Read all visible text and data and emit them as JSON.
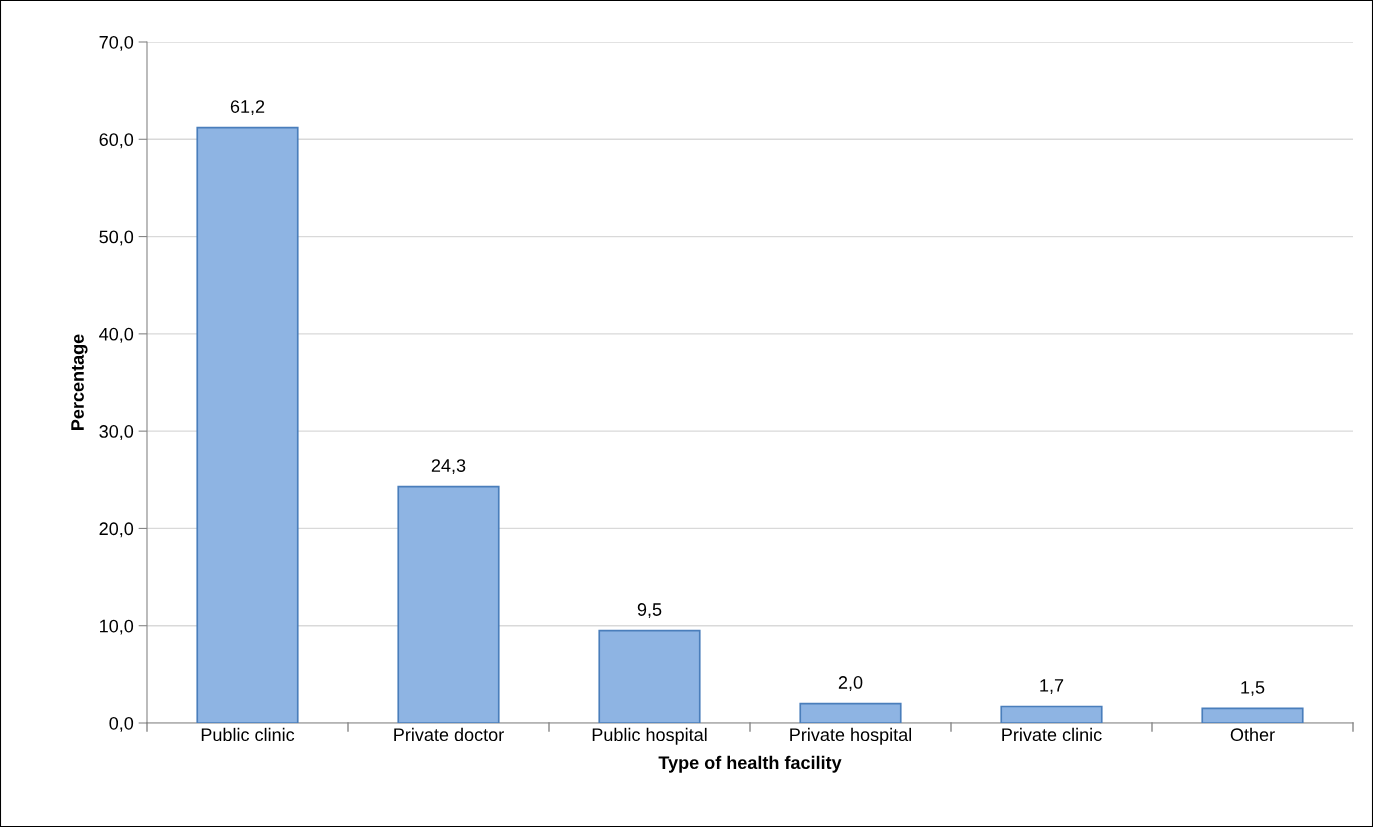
{
  "chart_data": {
    "type": "bar",
    "categories": [
      "Public clinic",
      "Private doctor",
      "Public hospital",
      "Private hospital",
      "Private clinic",
      "Other"
    ],
    "values": [
      61.2,
      24.3,
      9.5,
      2.0,
      1.7,
      1.5
    ],
    "value_labels": [
      "61,2",
      "24,3",
      "9,5",
      "2,0",
      "1,7",
      "1,5"
    ],
    "color": "#8eb4e3",
    "xlabel": "Type of health facility",
    "ylabel": "Percentage",
    "ylim": [
      0,
      70
    ],
    "yticks": [
      {
        "value": 0,
        "label": "0,0"
      },
      {
        "value": 10,
        "label": "10,0"
      },
      {
        "value": 20,
        "label": "20,0"
      },
      {
        "value": 30,
        "label": "30,0"
      },
      {
        "value": 40,
        "label": "40,0"
      },
      {
        "value": 50,
        "label": "50,0"
      },
      {
        "value": 60,
        "label": "60,0"
      },
      {
        "value": 70,
        "label": "70,0"
      }
    ],
    "grid": "y",
    "legend": false
  }
}
